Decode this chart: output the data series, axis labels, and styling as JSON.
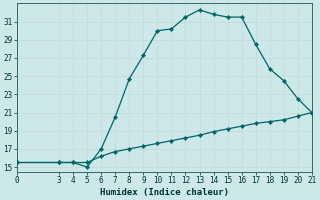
{
  "xlabel": "Humidex (Indice chaleur)",
  "ylabel": "",
  "background_color": "#cce8e8",
  "grid_color": "#c8dada",
  "line_color": "#006666",
  "xlim": [
    0,
    21
  ],
  "ylim": [
    14.5,
    33
  ],
  "xticks": [
    0,
    3,
    4,
    5,
    6,
    7,
    8,
    9,
    10,
    11,
    12,
    13,
    14,
    15,
    16,
    17,
    18,
    19,
    20,
    21
  ],
  "yticks": [
    15,
    17,
    19,
    21,
    23,
    25,
    27,
    29,
    31
  ],
  "curve_x": [
    0,
    3,
    4,
    5,
    6,
    7,
    8,
    9,
    10,
    11,
    12,
    13,
    14,
    15,
    16,
    17,
    18,
    19,
    20,
    21
  ],
  "curve_y": [
    15.5,
    15.5,
    15.5,
    15.0,
    17.0,
    20.5,
    24.7,
    27.3,
    30.0,
    30.2,
    31.5,
    32.3,
    31.8,
    31.5,
    31.5,
    28.5,
    25.8,
    24.5,
    22.5,
    21.0
  ],
  "line2_x": [
    0,
    3,
    4,
    5,
    6,
    7,
    8,
    9,
    10,
    11,
    12,
    13,
    14,
    15,
    16,
    17,
    18,
    19,
    20,
    21
  ],
  "line2_y": [
    15.5,
    15.5,
    15.5,
    15.5,
    16.2,
    16.7,
    17.0,
    17.3,
    17.6,
    17.9,
    18.2,
    18.5,
    18.9,
    19.2,
    19.5,
    19.8,
    20.0,
    20.2,
    20.6,
    21.0
  ],
  "tick_fontsize": 5.5,
  "xlabel_fontsize": 6.5,
  "spine_color": "#336666",
  "marker_size": 2.2,
  "linewidth": 0.9
}
